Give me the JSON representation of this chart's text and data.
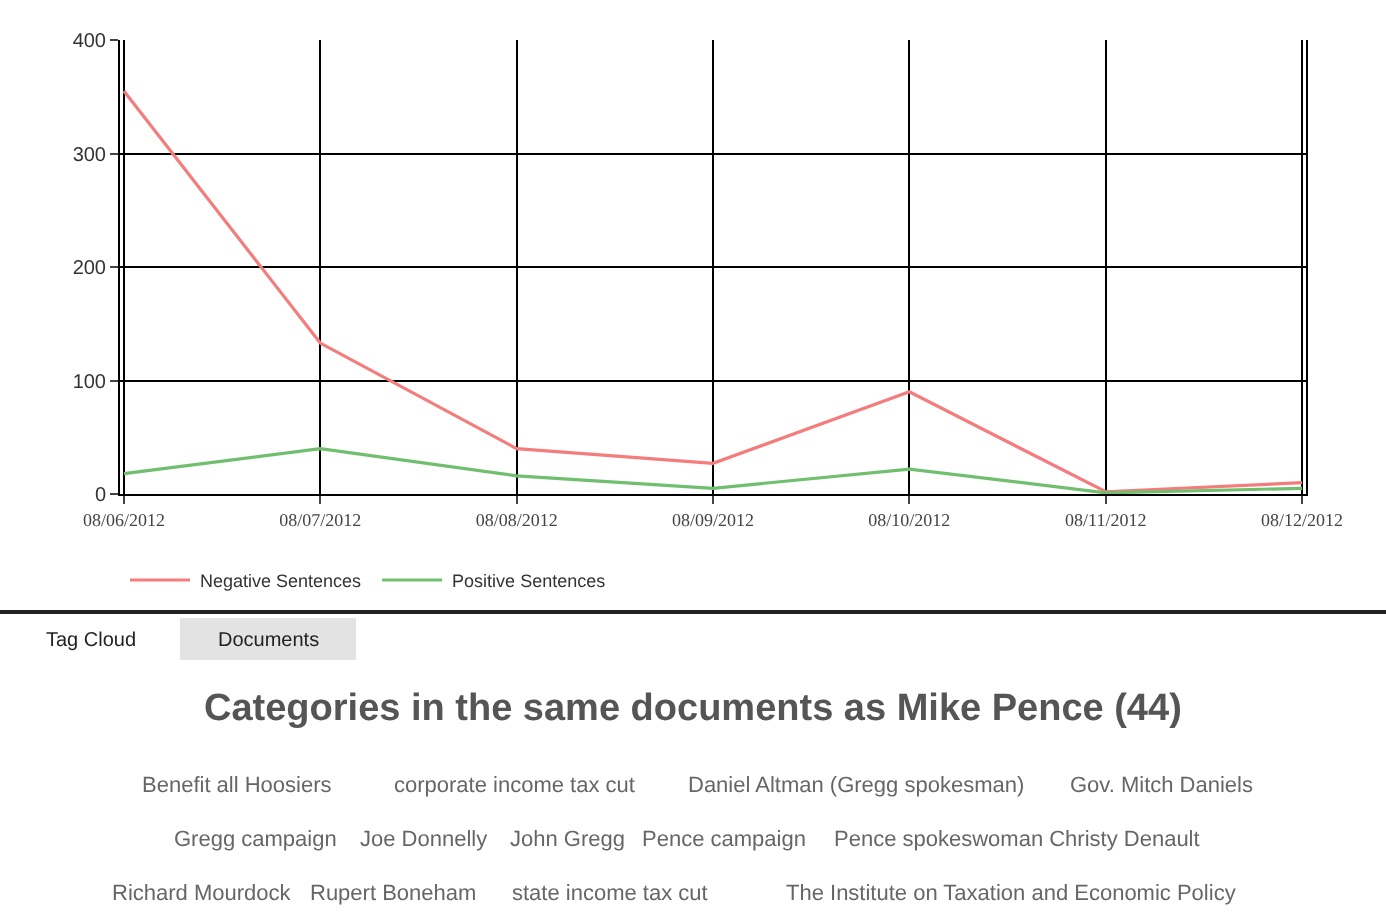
{
  "chart_data": {
    "type": "line",
    "categories": [
      "08/06/2012",
      "08/07/2012",
      "08/08/2012",
      "08/09/2012",
      "08/10/2012",
      "08/11/2012",
      "08/12/2012"
    ],
    "series": [
      {
        "name": "Negative Sentences",
        "color": "#f47c7c",
        "values": [
          355,
          133,
          40,
          27,
          90,
          2,
          10
        ]
      },
      {
        "name": "Positive Sentences",
        "color": "#6fbf6f",
        "values": [
          18,
          40,
          16,
          5,
          22,
          1,
          5
        ]
      }
    ],
    "ylim": [
      0,
      400
    ],
    "yticks": [
      0,
      100,
      200,
      300,
      400
    ],
    "grid": true,
    "legend": "bottom left",
    "marker": "none",
    "line_style": "solid",
    "annotations": [
      "Tag Cloud",
      "Documents",
      "Categories in the same documents as Mike Pence (44)",
      "Benefit all Hoosiers",
      "corporate income tax cut",
      "Daniel Altman (Gregg spokesman)",
      "Gov. Mitch Daniels",
      "Gregg campaign",
      "Joe Donnelly",
      "John Gregg",
      "Pence campaign",
      "Pence spokeswoman Christy Denault",
      "Richard Mourdock",
      "Rupert Boneham",
      "state income tax cut",
      "The Institute on Taxation and Economic Policy"
    ]
  }
}
